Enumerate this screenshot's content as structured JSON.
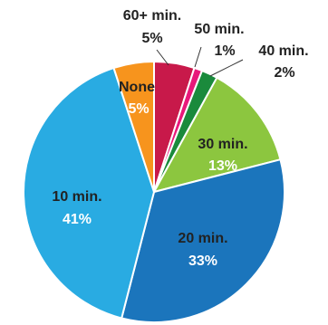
{
  "chart_data": {
    "type": "pie",
    "title": "",
    "slices": [
      {
        "name": "60+ min.",
        "value": 5,
        "value_label": "5%",
        "color": "#c8194a"
      },
      {
        "name": "50 min.",
        "value": 1,
        "value_label": "1%",
        "color": "#e8197a"
      },
      {
        "name": "40 min.",
        "value": 2,
        "value_label": "2%",
        "color": "#1a8a3c"
      },
      {
        "name": "30 min.",
        "value": 13,
        "value_label": "13%",
        "color": "#8cc63f"
      },
      {
        "name": "20 min.",
        "value": 33,
        "value_label": "33%",
        "color": "#1b75bc"
      },
      {
        "name": "10 min.",
        "value": 41,
        "value_label": "41%",
        "color": "#29abe2"
      },
      {
        "name": "None",
        "value": 5,
        "value_label": "5%",
        "color": "#f7941d"
      }
    ],
    "start_angle_deg": 0,
    "direction": "clockwise"
  }
}
